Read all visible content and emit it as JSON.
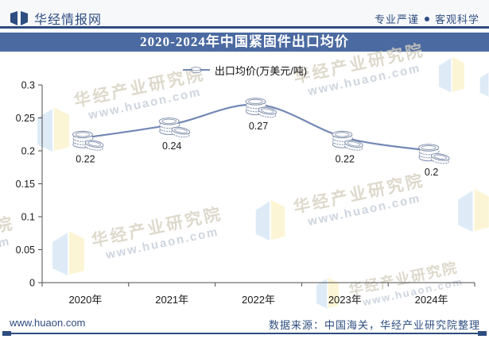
{
  "header": {
    "brand": "华经情报网",
    "tagline_left": "专业严谨",
    "tagline_right": "客观科学"
  },
  "title": "2020-2024年中国紧固件出口均价",
  "legend": {
    "label": "出口均价(万美元/吨)"
  },
  "chart_data": {
    "type": "line",
    "title": "2020-2024年中国紧固件出口均价",
    "categories": [
      "2020年",
      "2021年",
      "2022年",
      "2023年",
      "2024年"
    ],
    "series": [
      {
        "name": "出口均价(万美元/吨)",
        "values": [
          0.22,
          0.24,
          0.27,
          0.22,
          0.2
        ]
      }
    ],
    "data_labels": [
      "0.22",
      "0.24",
      "0.27",
      "0.22",
      "0.2"
    ],
    "ylabel": "",
    "xlabel": "",
    "ylim": [
      0,
      0.3
    ],
    "yticks": [
      0,
      0.05,
      0.1,
      0.15,
      0.2,
      0.25,
      0.3
    ],
    "ytick_labels": [
      "0",
      "0.05",
      "0.1",
      "0.15",
      "0.2",
      "0.25",
      "0.3"
    ],
    "grid": false,
    "legend_position": "top",
    "marker": "coin-stack-icon",
    "line_color": "#7488b5"
  },
  "watermark": {
    "text": "华经产业研究院",
    "url": "www.huaon.com"
  },
  "footer": {
    "site": "www.huaon.com",
    "source": "数据来源：中国海关，华经产业研究院整理"
  },
  "colors": {
    "navy": "#2e4d80",
    "banner_blue": "#4b6aa1",
    "line_blue": "#7488b5",
    "axis_gray": "#4d4d4d",
    "label_black": "#1a1a1a",
    "wm_text": "#d5cfbf",
    "wm_logo_blue": "#c3daf1",
    "wm_logo_yellow": "#faeeb9"
  }
}
